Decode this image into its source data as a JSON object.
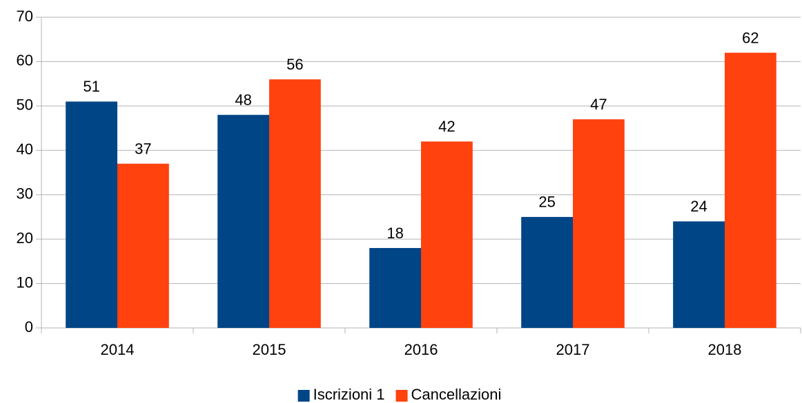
{
  "chart_data": {
    "type": "bar",
    "categories": [
      "2014",
      "2015",
      "2016",
      "2017",
      "2018"
    ],
    "series": [
      {
        "name": "Iscrizioni 1",
        "color": "#004586",
        "values": [
          51,
          48,
          18,
          25,
          24
        ]
      },
      {
        "name": "Cancellazioni",
        "color": "#ff420e",
        "values": [
          37,
          56,
          42,
          47,
          62
        ]
      }
    ],
    "ylim": [
      0,
      70
    ],
    "yticks": [
      0,
      10,
      20,
      30,
      40,
      50,
      60,
      70
    ],
    "grid": true,
    "legend": "bottom"
  }
}
